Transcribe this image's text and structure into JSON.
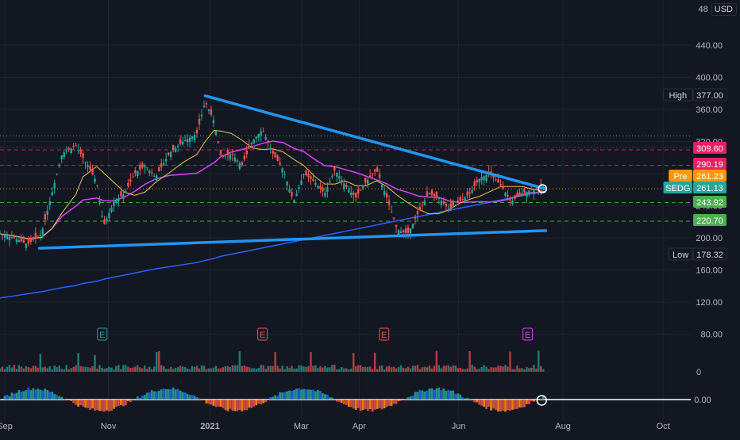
{
  "header": {
    "scale_cut": "48",
    "currency": "USD"
  },
  "theme": {
    "background": "#131722",
    "grid": "#1f2330",
    "axis_text": "#b2b5be",
    "up_candle": "#26a69a",
    "down_candle": "#ef5350",
    "trendline": "#2196f3",
    "ma_fast": "#e8c547",
    "ma_mid": "#e040fb",
    "ma_slow": "#2962ff",
    "osc_line": "#ffffff"
  },
  "chart_data": {
    "type": "candlestick",
    "symbol": "SEDG",
    "y_axis": {
      "ticks": [
        "440.00",
        "400.00",
        "360.00",
        "320.00",
        "280.00",
        "240.00",
        "200.00",
        "160.00",
        "120.00",
        "80.00"
      ],
      "tick_values": [
        440,
        400,
        360,
        320,
        280,
        240,
        200,
        160,
        120,
        80
      ]
    },
    "x_axis": {
      "labels": [
        "Sep",
        "Nov",
        "2021",
        "Mar",
        "Apr",
        "Jun",
        "Aug",
        "Oct"
      ]
    },
    "price_labels": [
      {
        "tag": "High",
        "value": "377.00",
        "color": "#131722",
        "text_color": "#d1d4dc",
        "border": "#2a2e39"
      },
      {
        "tag": "",
        "value": "309.60",
        "color": "#e91e63",
        "text_color": "#ffffff"
      },
      {
        "tag": "",
        "value": "290.19",
        "color": "#e91e63",
        "text_color": "#ffffff"
      },
      {
        "tag": "Pre",
        "value": "261.23",
        "color": "#ff9800",
        "text_color": "#ffffff"
      },
      {
        "tag": "SEDG",
        "value": "261.13",
        "color": "#26a69a",
        "text_color": "#ffffff"
      },
      {
        "tag": "",
        "value": "243.92",
        "color": "#4caf50",
        "text_color": "#ffffff"
      },
      {
        "tag": "",
        "value": "220.70",
        "color": "#4caf50",
        "text_color": "#ffffff"
      },
      {
        "tag": "Low",
        "value": "178.32",
        "color": "#131722",
        "text_color": "#d1d4dc",
        "border": "#2a2e39"
      }
    ],
    "levels": [
      {
        "value": 327,
        "color": "#4caf50",
        "style": "dotted"
      },
      {
        "value": 313,
        "color": "#e91e63",
        "style": "dotted"
      },
      {
        "value": 309.6,
        "color": "#e91e63",
        "style": "dashed"
      },
      {
        "value": 290.19,
        "color": "#e91e63",
        "style": "dashed"
      },
      {
        "value": 261.13,
        "color": "#ff9800",
        "style": "dotted"
      },
      {
        "value": 243.92,
        "color": "#4caf50",
        "style": "dashed"
      },
      {
        "value": 220.7,
        "color": "#4caf50",
        "style": "dashed"
      }
    ],
    "trendlines": [
      {
        "from": [
          0.297,
          377
        ],
        "to": [
          0.79,
          261
        ],
        "color": "#2196f3"
      },
      {
        "from": [
          0.057,
          187
        ],
        "to": [
          0.79,
          209
        ],
        "color": "#2196f3"
      }
    ],
    "earnings_markers": [
      {
        "label": "E",
        "x": 0.148,
        "color": "#26a69a"
      },
      {
        "label": "E",
        "x": 0.38,
        "color": "#ef5350"
      },
      {
        "label": "E",
        "x": 0.556,
        "color": "#ef5350"
      },
      {
        "label": "E",
        "x": 0.764,
        "color": "#e040fb"
      }
    ],
    "oscillator": {
      "zero_label": "0.00",
      "volume_zero_label": "0"
    },
    "trend_points": [
      [
        0,
        205
      ],
      [
        0.02,
        200
      ],
      [
        0.04,
        192
      ],
      [
        0.06,
        205
      ],
      [
        0.075,
        255
      ],
      [
        0.09,
        305
      ],
      [
        0.11,
        315
      ],
      [
        0.12,
        300
      ],
      [
        0.14,
        270
      ],
      [
        0.15,
        215
      ],
      [
        0.165,
        245
      ],
      [
        0.18,
        255
      ],
      [
        0.195,
        280
      ],
      [
        0.21,
        290
      ],
      [
        0.225,
        275
      ],
      [
        0.245,
        305
      ],
      [
        0.265,
        320
      ],
      [
        0.285,
        330
      ],
      [
        0.297,
        370
      ],
      [
        0.31,
        345
      ],
      [
        0.32,
        300
      ],
      [
        0.335,
        305
      ],
      [
        0.35,
        290
      ],
      [
        0.365,
        320
      ],
      [
        0.38,
        335
      ],
      [
        0.395,
        305
      ],
      [
        0.41,
        285
      ],
      [
        0.425,
        245
      ],
      [
        0.44,
        280
      ],
      [
        0.455,
        270
      ],
      [
        0.47,
        255
      ],
      [
        0.485,
        285
      ],
      [
        0.5,
        265
      ],
      [
        0.515,
        250
      ],
      [
        0.53,
        270
      ],
      [
        0.545,
        285
      ],
      [
        0.56,
        250
      ],
      [
        0.575,
        210
      ],
      [
        0.59,
        205
      ],
      [
        0.605,
        230
      ],
      [
        0.62,
        255
      ],
      [
        0.635,
        250
      ],
      [
        0.65,
        235
      ],
      [
        0.665,
        245
      ],
      [
        0.68,
        255
      ],
      [
        0.695,
        275
      ],
      [
        0.71,
        280
      ],
      [
        0.725,
        265
      ],
      [
        0.74,
        245
      ],
      [
        0.755,
        255
      ],
      [
        0.77,
        260
      ],
      [
        0.79,
        261
      ]
    ]
  }
}
